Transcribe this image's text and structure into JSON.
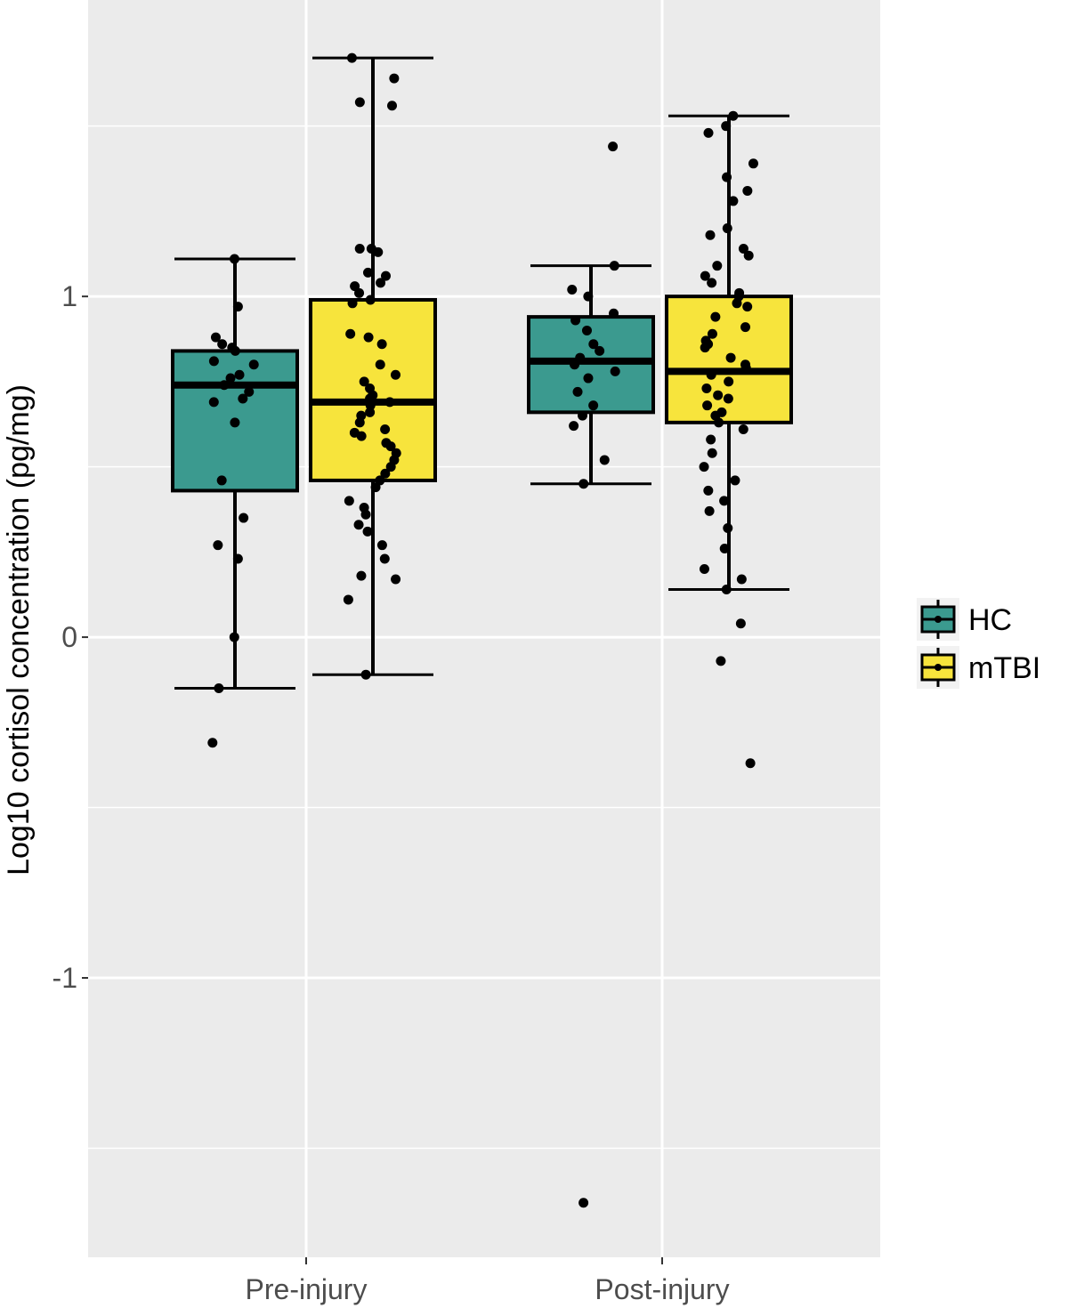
{
  "chart_data": {
    "type": "boxplot",
    "ylabel": "Log10 cortisol concentration (pg/mg)",
    "xlabel": "",
    "categories": [
      "Pre-injury",
      "Post-injury"
    ],
    "yticks": [
      -1,
      0,
      1
    ],
    "ytick_labels": [
      "-1",
      "0",
      "1"
    ],
    "ylim": [
      -1.82,
      1.87
    ],
    "grid": true,
    "legend": {
      "placement": "right",
      "entries": [
        "HC",
        "mTBI"
      ]
    },
    "colors": {
      "HC": "#3b9a8f",
      "mTBI": "#f7e43c",
      "panel": "#ebebeb",
      "grid": "#ffffff"
    },
    "series": [
      {
        "name": "HC",
        "boxes": [
          {
            "category": "Pre-injury",
            "whisker_low": -0.15,
            "q1": 0.43,
            "median": 0.74,
            "q3": 0.84,
            "whisker_high": 1.11,
            "points": [
              1.11,
              0.97,
              0.88,
              0.86,
              0.85,
              0.84,
              0.81,
              0.8,
              0.77,
              0.76,
              0.74,
              0.72,
              0.7,
              0.69,
              0.63,
              0.46,
              0.35,
              0.27,
              0.23,
              0.0,
              -0.15,
              -0.31
            ]
          },
          {
            "category": "Post-injury",
            "whisker_low": 0.45,
            "q1": 0.66,
            "median": 0.81,
            "q3": 0.94,
            "whisker_high": 1.09,
            "points": [
              1.44,
              1.09,
              1.02,
              1.0,
              0.95,
              0.93,
              0.9,
              0.86,
              0.84,
              0.82,
              0.8,
              0.78,
              0.76,
              0.72,
              0.68,
              0.65,
              0.62,
              0.52,
              0.45,
              -1.66
            ]
          }
        ]
      },
      {
        "name": "mTBI",
        "boxes": [
          {
            "category": "Pre-injury",
            "whisker_low": -0.11,
            "q1": 0.46,
            "median": 0.69,
            "q3": 0.99,
            "whisker_high": 1.7,
            "points": [
              1.7,
              1.64,
              1.57,
              1.56,
              1.14,
              1.14,
              1.13,
              1.07,
              1.06,
              1.04,
              1.03,
              1.01,
              0.99,
              0.98,
              0.89,
              0.88,
              0.86,
              0.8,
              0.77,
              0.75,
              0.73,
              0.71,
              0.7,
              0.69,
              0.68,
              0.66,
              0.65,
              0.63,
              0.61,
              0.6,
              0.59,
              0.57,
              0.56,
              0.54,
              0.52,
              0.5,
              0.48,
              0.46,
              0.44,
              0.4,
              0.38,
              0.36,
              0.33,
              0.31,
              0.27,
              0.23,
              0.18,
              0.17,
              0.11,
              -0.11
            ]
          },
          {
            "category": "Post-injury",
            "whisker_low": 0.14,
            "q1": 0.63,
            "median": 0.78,
            "q3": 1.0,
            "whisker_high": 1.53,
            "points": [
              1.53,
              1.5,
              1.48,
              1.39,
              1.35,
              1.31,
              1.28,
              1.2,
              1.18,
              1.14,
              1.12,
              1.09,
              1.06,
              1.04,
              1.01,
              1.0,
              0.98,
              0.97,
              0.94,
              0.91,
              0.89,
              0.87,
              0.86,
              0.85,
              0.82,
              0.8,
              0.79,
              0.77,
              0.75,
              0.73,
              0.71,
              0.7,
              0.68,
              0.66,
              0.65,
              0.63,
              0.61,
              0.58,
              0.54,
              0.5,
              0.46,
              0.43,
              0.4,
              0.37,
              0.32,
              0.26,
              0.2,
              0.17,
              0.14,
              0.04,
              -0.07,
              -0.37
            ]
          }
        ]
      }
    ]
  }
}
